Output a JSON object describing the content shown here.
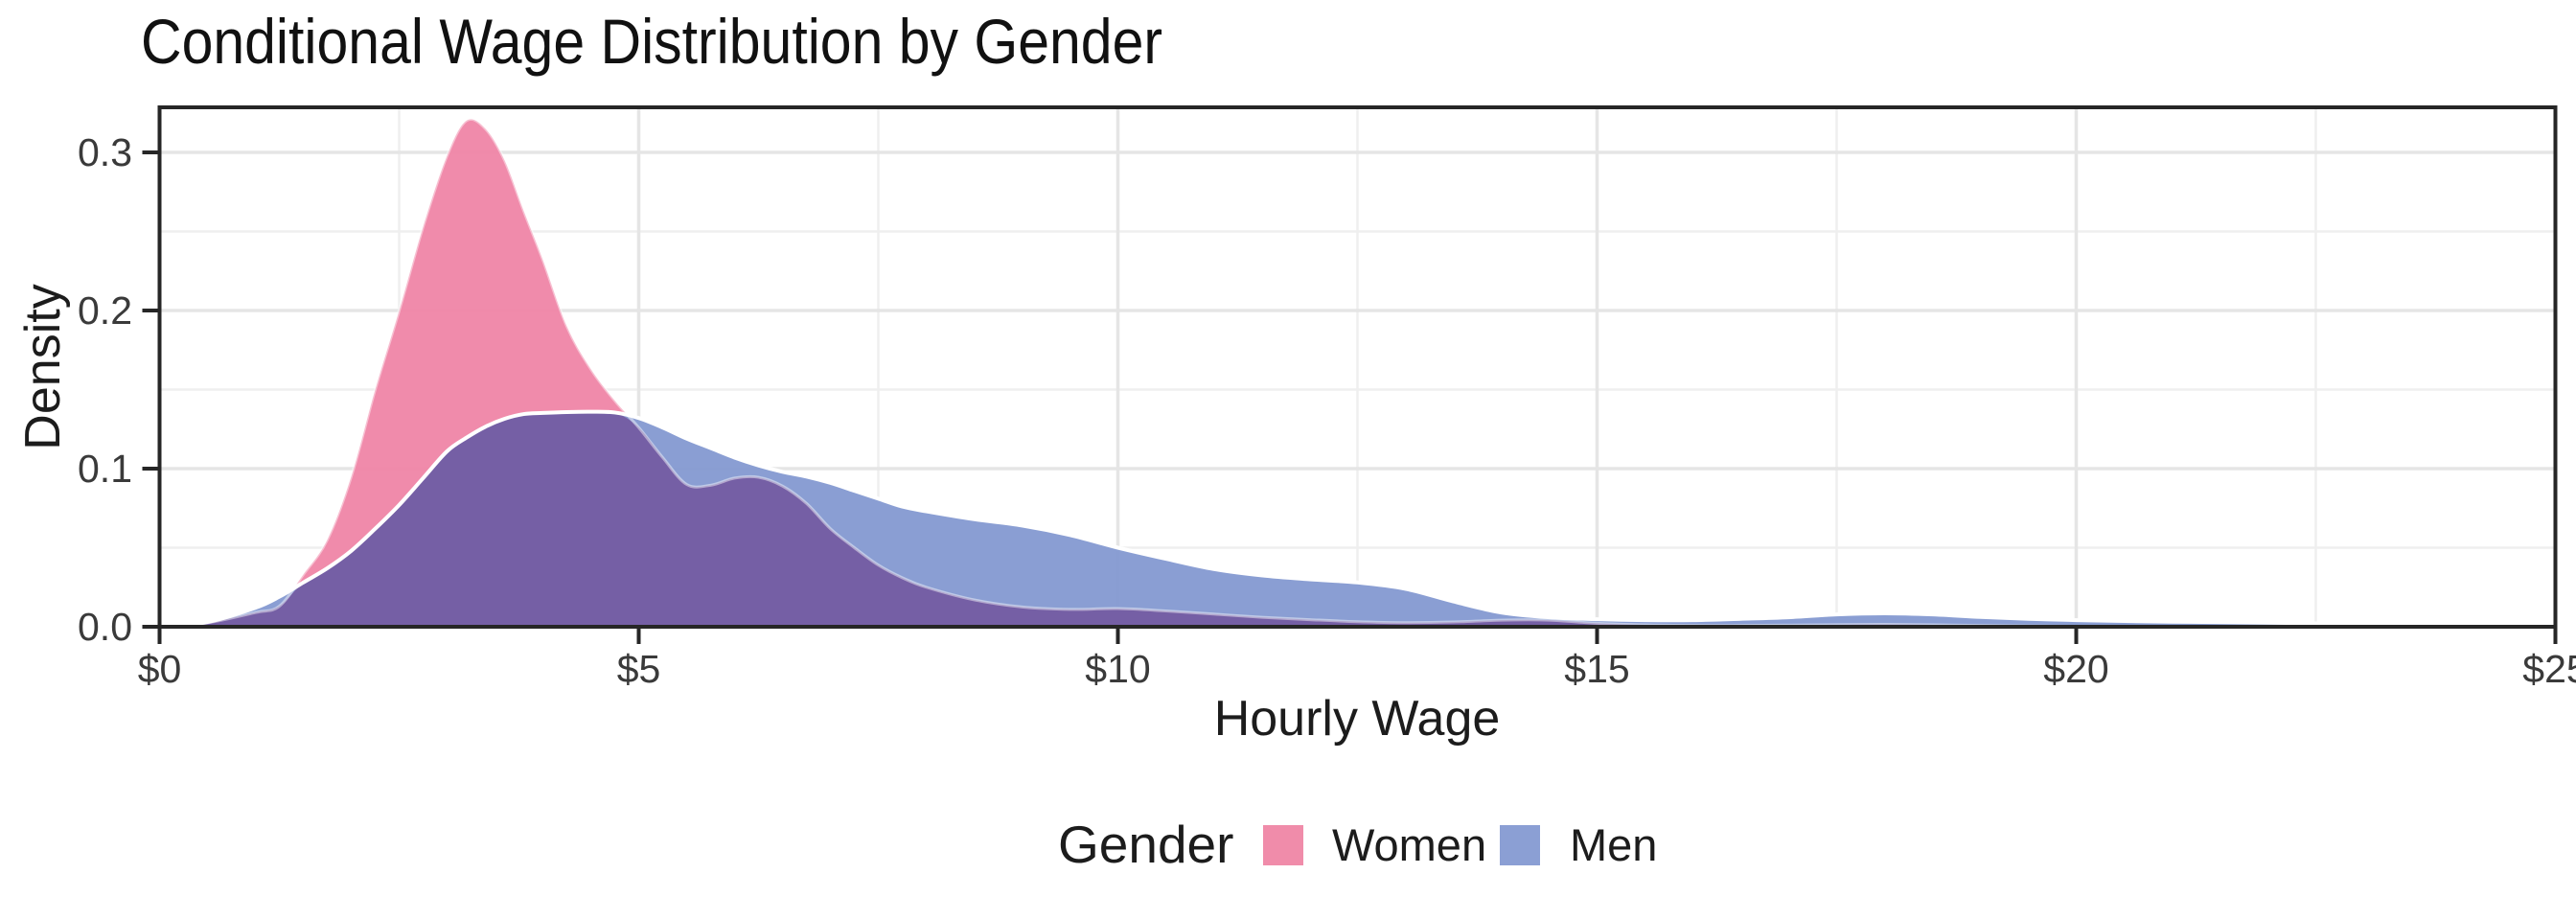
{
  "chart_data": {
    "type": "area",
    "title": "Conditional Wage Distribution by Gender",
    "xlabel": "Hourly Wage",
    "ylabel": "Density",
    "xlim": [
      0,
      25
    ],
    "ylim": [
      0,
      0.3285
    ],
    "x_ticks": {
      "values": [
        0,
        5,
        10,
        15,
        20,
        25
      ],
      "labels": [
        "$0",
        "$5",
        "$10",
        "$15",
        "$20",
        "$25"
      ]
    },
    "y_ticks": {
      "values": [
        0,
        0.1,
        0.2,
        0.3
      ],
      "labels": [
        "0.0",
        "0.1",
        "0.2",
        "0.3"
      ]
    },
    "x_minor": [
      2.5,
      7.5,
      12.5,
      17.5,
      22.5
    ],
    "y_minor": [
      0.05,
      0.15,
      0.25
    ],
    "grid": {
      "major_color": "#E5E5E5",
      "minor_color": "#EFEFEF",
      "show": "major+minor"
    },
    "frame_color": "#262626",
    "tick_color": "#262626",
    "tick_label_color": "#3A3A3A",
    "axis_title_color": "#1C1C1C",
    "title_color": "#111111",
    "legend": {
      "position": "bottom",
      "title": "Gender"
    },
    "overlap_fill": "rgba(117,93,163,0.96)",
    "x": [
      0,
      0.5,
      1,
      1.25,
      1.5,
      1.75,
      2,
      2.25,
      2.5,
      2.75,
      3,
      3.2,
      3.4,
      3.6,
      3.8,
      4,
      4.25,
      4.5,
      4.75,
      5,
      5.25,
      5.5,
      5.75,
      6,
      6.25,
      6.5,
      6.75,
      7,
      7.25,
      7.5,
      7.75,
      8,
      8.5,
      9,
      9.5,
      10,
      10.5,
      11,
      11.5,
      12,
      12.5,
      13,
      13.5,
      14,
      14.5,
      15,
      15.5,
      16,
      16.5,
      17,
      17.5,
      18,
      18.5,
      19,
      19.5,
      20,
      21,
      22,
      23,
      24,
      25
    ],
    "series": [
      {
        "name": "Women",
        "swatch_color": "#F08CAA",
        "fill": "rgba(239,133,166,0.95)",
        "outline": "rgba(255,255,255,0.45)",
        "outline_width": 3,
        "values": [
          0,
          0.0025,
          0.009,
          0.013,
          0.033,
          0.055,
          0.095,
          0.15,
          0.2,
          0.253,
          0.298,
          0.32,
          0.315,
          0.295,
          0.263,
          0.232,
          0.19,
          0.163,
          0.143,
          0.126,
          0.107,
          0.09,
          0.0895,
          0.094,
          0.0945,
          0.089,
          0.078,
          0.062,
          0.05,
          0.039,
          0.031,
          0.025,
          0.017,
          0.0125,
          0.011,
          0.0115,
          0.01,
          0.008,
          0.006,
          0.0045,
          0.0032,
          0.0026,
          0.003,
          0.0042,
          0.0042,
          0.0022,
          0.0012,
          0.0008,
          0.0008,
          0.001,
          0.0013,
          0.0015,
          0.0012,
          0.0008,
          0.0005,
          0.0003,
          0.0002,
          0.0001,
          0.0001,
          0,
          0
        ]
      },
      {
        "name": "Men",
        "swatch_color": "#8B9FD4",
        "fill": "rgba(132,153,209,0.95)",
        "outline": "#FFFFFF",
        "outline_width": 4,
        "values": [
          0,
          0.003,
          0.012,
          0.019,
          0.028,
          0.037,
          0.048,
          0.062,
          0.077,
          0.094,
          0.111,
          0.1195,
          0.1265,
          0.1315,
          0.1345,
          0.1352,
          0.1358,
          0.136,
          0.1355,
          0.132,
          0.126,
          0.119,
          0.113,
          0.107,
          0.102,
          0.098,
          0.095,
          0.091,
          0.086,
          0.081,
          0.076,
          0.073,
          0.068,
          0.064,
          0.058,
          0.05,
          0.043,
          0.0365,
          0.0325,
          0.03,
          0.028,
          0.024,
          0.016,
          0.009,
          0.006,
          0.0048,
          0.0042,
          0.0042,
          0.005,
          0.006,
          0.0078,
          0.0085,
          0.0078,
          0.0062,
          0.005,
          0.0042,
          0.0032,
          0.0026,
          0.0018,
          0.001,
          0.0005
        ]
      }
    ]
  }
}
